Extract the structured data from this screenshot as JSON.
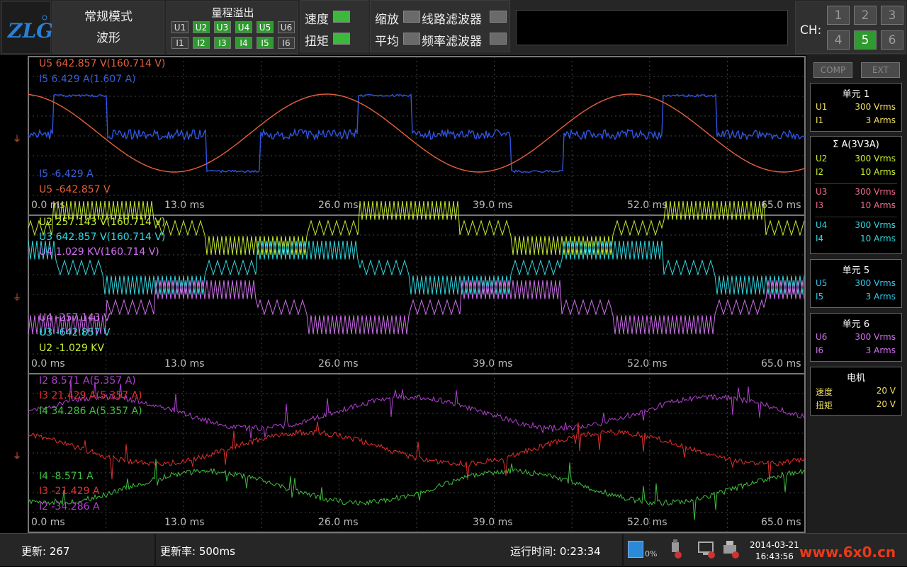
{
  "header": {
    "logo": "ZLG",
    "mode": "常规模式",
    "view": "波形",
    "overrange_title": "量程溢出",
    "u_tags": [
      "U1",
      "U2",
      "U3",
      "U4",
      "U5",
      "U6"
    ],
    "i_tags": [
      "I1",
      "I2",
      "I3",
      "I4",
      "I5",
      "I6"
    ],
    "speed": "速度",
    "torque": "扭矩",
    "zoom": "缩放",
    "avg": "平均",
    "line_filter": "线路滤波器",
    "freq_filter": "频率滤波器",
    "ch_label": "CH:",
    "ch_buttons": [
      "1",
      "2",
      "3",
      "4",
      "5",
      "6"
    ],
    "ch_selected": "5"
  },
  "scope": {
    "panel1": {
      "top_labels": [
        "U5   642.857 V(160.714 V)",
        "I5    6.429 A(1.607 A)"
      ],
      "bottom_labels": [
        "I5    -6.429 A",
        "U5   -642.857 V"
      ],
      "colors": [
        "#e8603c",
        "#3a5cd8"
      ]
    },
    "panel2": {
      "top_labels": [
        "U2   257.143 V(160.714 V)",
        "U3   642.857 V(160.714 V)",
        "U4   1.029 KV(160.714 V)"
      ],
      "bottom_labels": [
        "U4   -257.143 V",
        "U3   -642.857 V",
        "U2   -1.029 KV"
      ],
      "colors": [
        "#c8ee30",
        "#30d8e0",
        "#d070ee"
      ]
    },
    "panel3": {
      "top_labels": [
        "I2   8.571 A(5.357 A)",
        "I3   21.429 A(5.357 A)",
        "I4   34.286 A(5.357 A)"
      ],
      "bottom_labels": [
        "I4   -8.571 A",
        "I3   -21.429 A",
        "I2   -34.286 A"
      ],
      "colors": [
        "#b040d0",
        "#e03030",
        "#40c040"
      ]
    },
    "time_ticks": [
      "0.0 ms",
      "13.0 ms",
      "26.0 ms",
      "39.0 ms",
      "52.0 ms",
      "65.0 ms"
    ]
  },
  "sidebar": {
    "comp": "COMP",
    "ext": "EXT",
    "groups": [
      {
        "title": "单元 1",
        "rows": [
          [
            "U1",
            "300 Vrms"
          ],
          [
            "I1",
            "3 Arms"
          ]
        ],
        "color": "#f0e060"
      },
      {
        "title": "Σ A(3V3A)",
        "rows": [
          [
            "U2",
            "300 Vrms"
          ],
          [
            "I2",
            "10 Arms"
          ],
          [
            "U3",
            "300 Vrms"
          ],
          [
            "I3",
            "10 Arms"
          ],
          [
            "U4",
            "300 Vrms"
          ],
          [
            "I4",
            "10 Arms"
          ]
        ],
        "colors": [
          "#c8ee30",
          "#f06a8a",
          "#30d8e0"
        ]
      },
      {
        "title": "单元 5",
        "rows": [
          [
            "U5",
            "300 Vrms"
          ],
          [
            "I5",
            "3 Arms"
          ]
        ],
        "color": "#30c8f0"
      },
      {
        "title": "单元 6",
        "rows": [
          [
            "U6",
            "300 Vrms"
          ],
          [
            "I6",
            "3 Arms"
          ]
        ],
        "color": "#d070ee"
      },
      {
        "title": "电机",
        "rows": [
          [
            "速度",
            "20 V"
          ],
          [
            "扭矩",
            "20 V"
          ]
        ],
        "color": "#f0e060"
      }
    ]
  },
  "status": {
    "update": "更新: 267",
    "rate": "更新率: 500ms",
    "runtime": "运行时间: 0:23:34",
    "disk": "0%",
    "date": "2014-03-21",
    "time": "16:43:56",
    "watermark": "www.6x0.cn"
  }
}
